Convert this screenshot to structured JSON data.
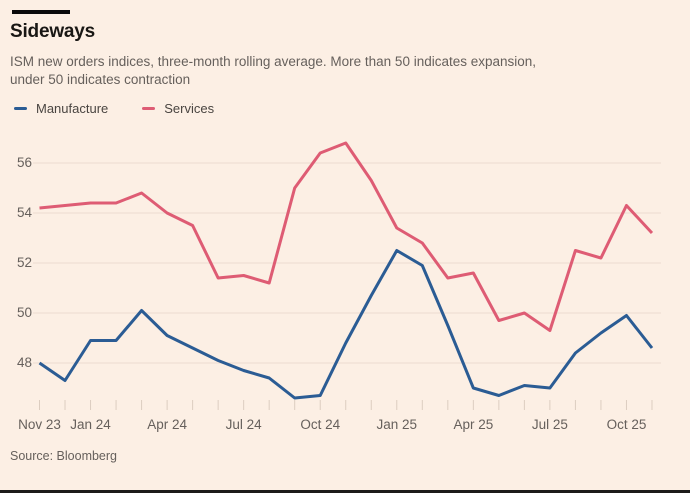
{
  "header": {
    "title": "Sideways",
    "subtitle_line1": "ISM new orders indices, three-month rolling average. More than 50 indicates expansion,",
    "subtitle_line2": "under 50 indicates contraction"
  },
  "footer": {
    "source": "Source: Bloomberg"
  },
  "colors": {
    "background": "#fcefe4",
    "manufacture_line": "#2b5c94",
    "services_line": "#de5c74",
    "gridline": "#efdfd3",
    "tick": "#dccdc0",
    "text_muted": "#66605c",
    "title_text": "#191714"
  },
  "chart_data": {
    "type": "line",
    "title": "Sideways",
    "subtitle": "ISM new orders indices, three-month rolling average. More than 50 indicates expansion, under 50 indicates contraction",
    "source": "Source: Bloomberg",
    "grid": true,
    "legend_position": "top-left",
    "xlabel": "",
    "ylabel": "",
    "ylim": [
      46.4,
      57.2
    ],
    "y_ticks": [
      48,
      50,
      52,
      54,
      56
    ],
    "x": [
      "Nov 23",
      "Dec 23",
      "Jan 24",
      "Feb 24",
      "Mar 24",
      "Apr 24",
      "May 24",
      "Jun 24",
      "Jul 24",
      "Aug 24",
      "Sep 24",
      "Oct 24",
      "Nov 24",
      "Dec 24",
      "Jan 25",
      "Feb 25",
      "Mar 25",
      "Apr 25",
      "May 25",
      "Jun 25",
      "Jul 25",
      "Aug 25",
      "Sep 25",
      "Oct 25",
      "Nov 25"
    ],
    "x_tick_labels": [
      "Nov 23",
      "Jan 24",
      "Apr 24",
      "Jul 24",
      "Oct 24",
      "Jan 25",
      "Apr 25",
      "Jul 25",
      "Oct 25"
    ],
    "x_tick_indices": [
      0,
      2,
      5,
      8,
      11,
      14,
      17,
      20,
      23
    ],
    "series": [
      {
        "name": "Manufacture",
        "color": "#2b5c94",
        "values": [
          48.0,
          47.3,
          48.9,
          48.9,
          50.1,
          49.1,
          48.6,
          48.1,
          47.7,
          47.4,
          46.6,
          46.7,
          48.8,
          50.7,
          52.5,
          51.9,
          49.5,
          47.0,
          46.7,
          47.1,
          47.0,
          48.4,
          49.2,
          49.9,
          48.6
        ]
      },
      {
        "name": "Services",
        "color": "#de5c74",
        "values": [
          54.2,
          54.3,
          54.4,
          54.4,
          54.8,
          54.0,
          53.5,
          51.4,
          51.5,
          51.2,
          55.0,
          56.4,
          56.8,
          55.3,
          53.4,
          52.8,
          51.4,
          51.6,
          49.7,
          50.0,
          49.3,
          52.5,
          52.2,
          54.3,
          53.2
        ]
      }
    ]
  }
}
